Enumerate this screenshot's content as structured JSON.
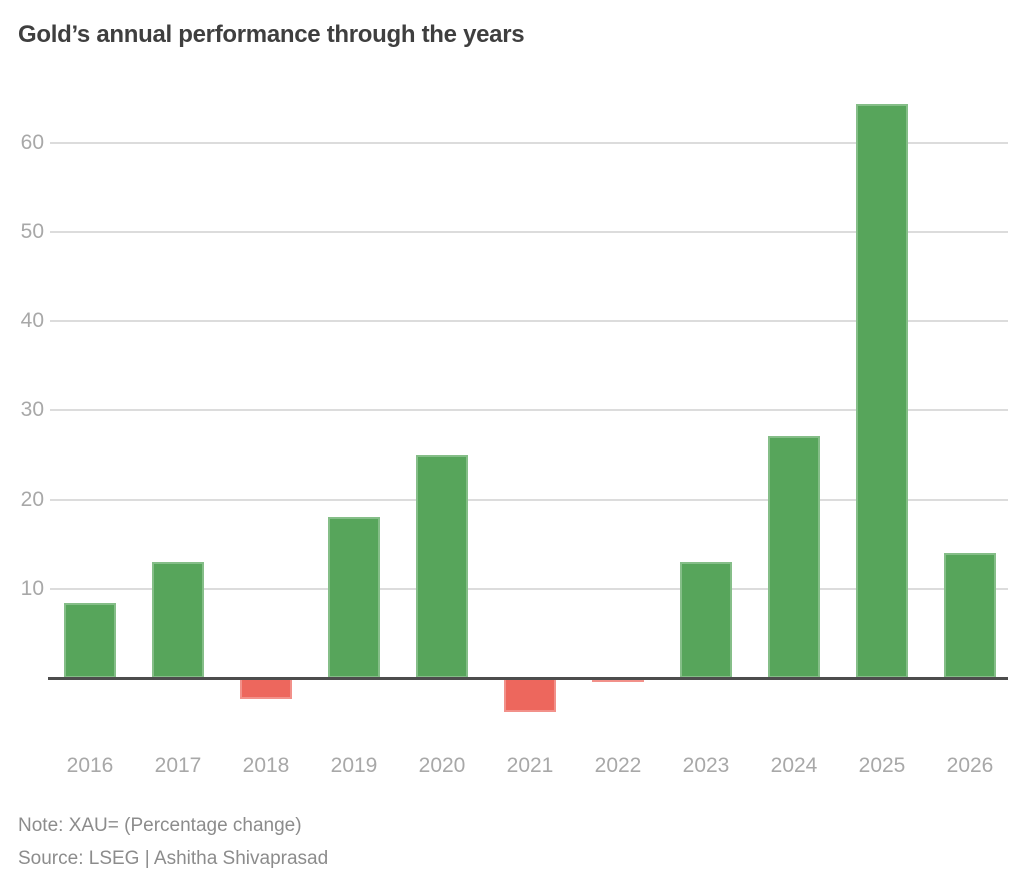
{
  "title": "Gold’s annual performance through the years",
  "note": "Note: XAU= (Percentage change)",
  "source": "Source: LSEG | Ashitha Shivaprasad",
  "colors": {
    "positive_bar": "#57a55b",
    "negative_bar": "#ed675d",
    "baseline": "#4d4d4d",
    "gridline": "#dcdcdc",
    "title_text": "#3f3f3f",
    "axis_text": "#a8a8a8",
    "footer_text": "#8c8c8c"
  },
  "chart_data": {
    "type": "bar",
    "title": "Gold’s annual performance through the years",
    "categories": [
      "2016",
      "2017",
      "2018",
      "2019",
      "2020",
      "2021",
      "2022",
      "2023",
      "2024",
      "2025",
      "2026"
    ],
    "values": [
      8.4,
      13.0,
      -2.3,
      18.0,
      25.0,
      -3.8,
      -0.4,
      13.0,
      27.1,
      64.4,
      14.0
    ],
    "xlabel": "",
    "ylabel": "",
    "unit": "percent",
    "y_ticks": [
      10,
      20,
      30,
      40,
      50,
      60
    ],
    "ylim": [
      -6.5,
      66
    ],
    "grid": true,
    "legend": "none",
    "note": "Note: XAU= (Percentage change)",
    "source": "Source: LSEG | Ashitha Shivaprasad"
  }
}
